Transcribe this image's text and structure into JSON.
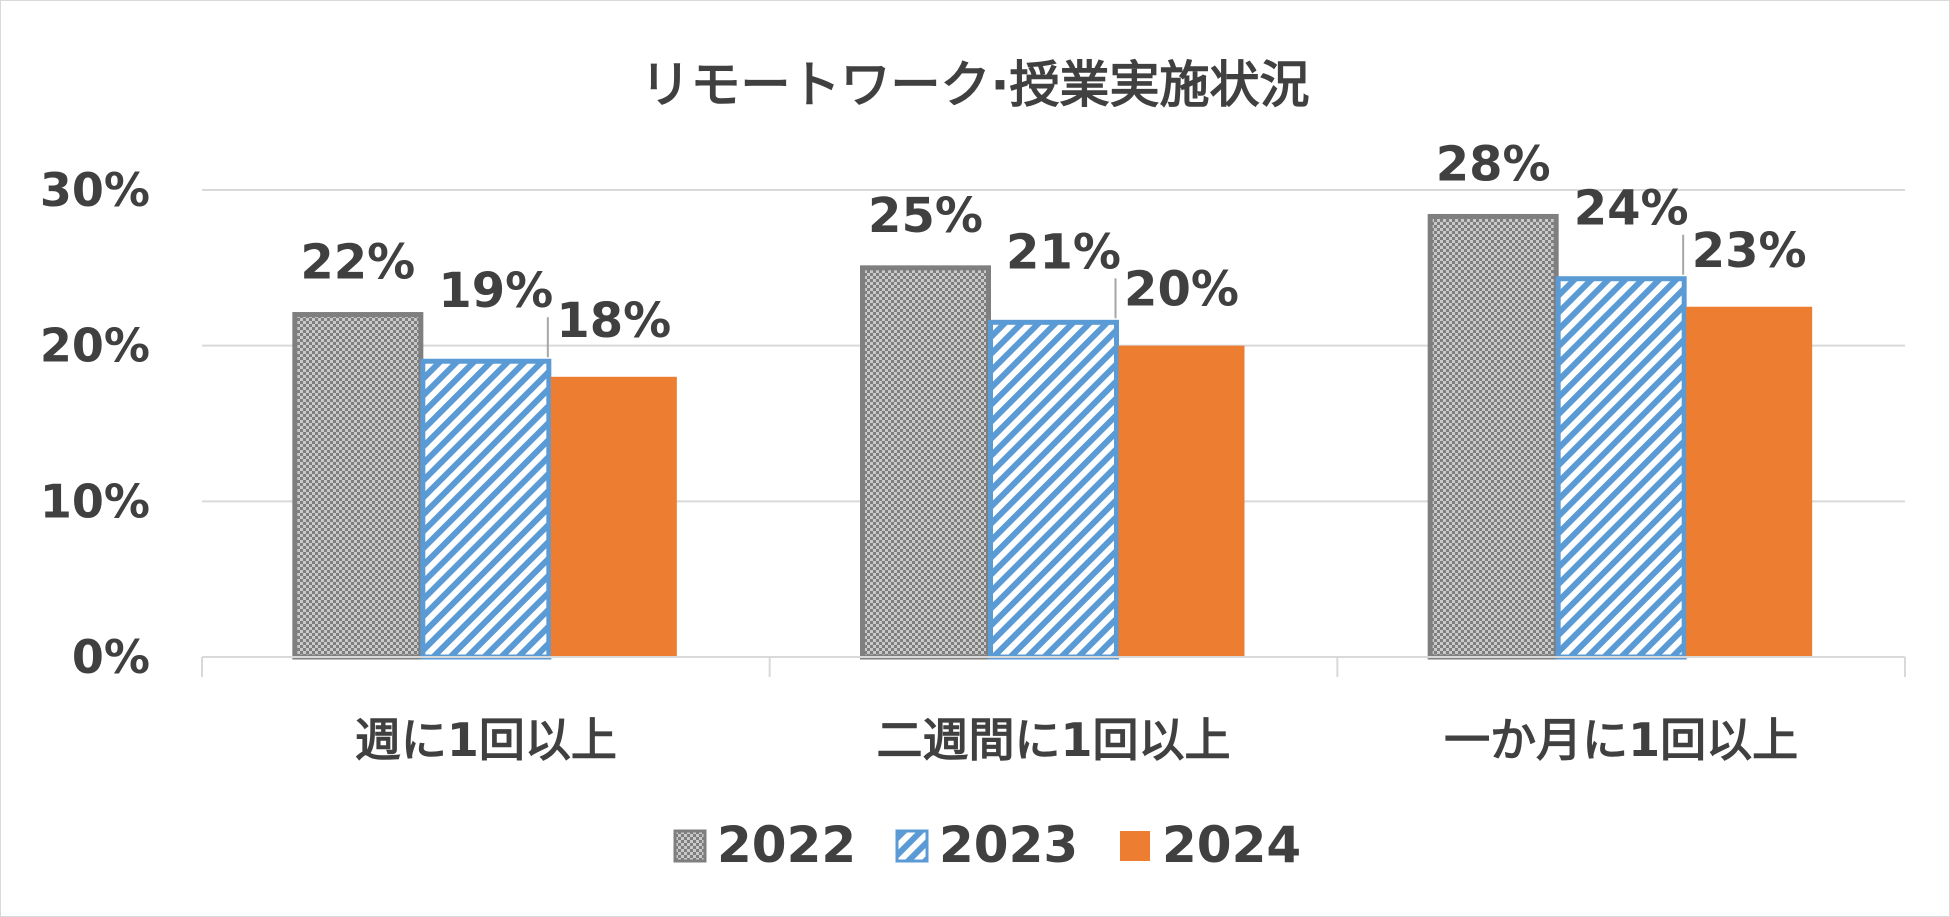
{
  "chart_data": {
    "type": "bar",
    "title": "リモートワーク·授業実施状況",
    "categories": [
      "週に1回以上",
      "二週間に1回以上",
      "一か月に1回以上"
    ],
    "ylim": [
      0,
      0.3
    ],
    "yticks": [
      "0%",
      "10%",
      "20%",
      "30%"
    ],
    "grid": true,
    "legend_position": "bottom",
    "series": [
      {
        "name": "2022",
        "values": [
          0.22,
          0.25,
          0.283
        ],
        "labels": [
          "22%",
          "25%",
          "28%"
        ],
        "color": "#7f7f7f",
        "pattern": "checker"
      },
      {
        "name": "2023",
        "values": [
          0.19,
          0.215,
          0.243
        ],
        "labels": [
          "19%",
          "21%",
          "24%"
        ],
        "color": "#5b9bd5",
        "pattern": "diagonal-stripes"
      },
      {
        "name": "2024",
        "values": [
          0.18,
          0.2,
          0.225
        ],
        "labels": [
          "18%",
          "20%",
          "23%"
        ],
        "color": "#ed7d31",
        "pattern": "solid"
      }
    ]
  }
}
